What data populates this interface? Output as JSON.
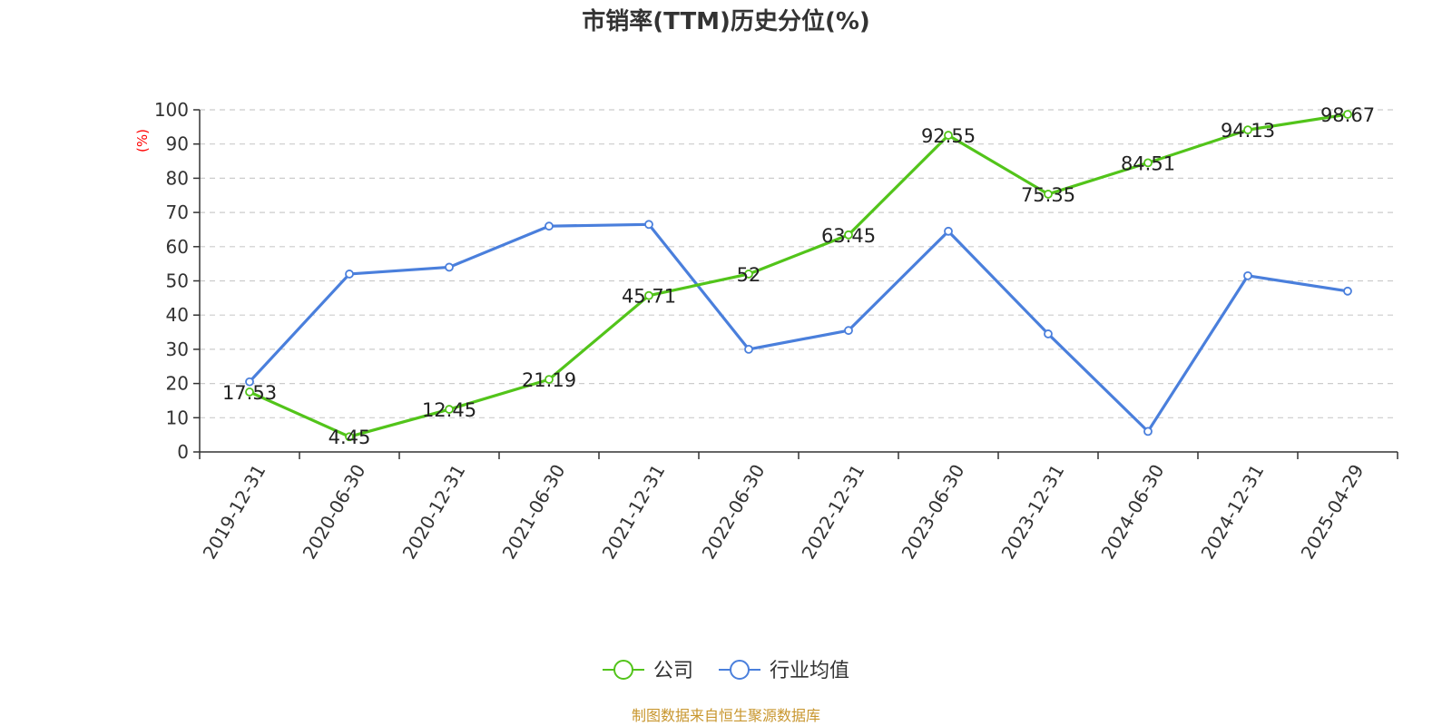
{
  "chart_data": {
    "type": "line",
    "title": "市销率(TTM)历史分位(%)",
    "ylabel": "(%)",
    "ylim": [
      0,
      100
    ],
    "yticks": [
      0,
      10,
      20,
      30,
      40,
      50,
      60,
      70,
      80,
      90,
      100
    ],
    "grid": true,
    "legend_position": "bottom",
    "categories": [
      "2019-12-31",
      "2020-06-30",
      "2020-12-31",
      "2021-06-30",
      "2021-12-31",
      "2022-06-30",
      "2022-12-31",
      "2023-06-30",
      "2023-12-31",
      "2024-06-30",
      "2024-12-31",
      "2025-04-29"
    ],
    "series": [
      {
        "name": "公司",
        "color": "#52c41a",
        "values": [
          17.53,
          4.45,
          12.45,
          21.19,
          45.71,
          52,
          63.45,
          92.55,
          75.35,
          84.51,
          94.13,
          98.67
        ],
        "data_labels": [
          "17.53",
          "4.45",
          "12.45",
          "21.19",
          "45.71",
          "52",
          "63.45",
          "92.55",
          "75.35",
          "84.51",
          "94.13",
          "98.67"
        ]
      },
      {
        "name": "行业均值",
        "color": "#4a7fdc",
        "values": [
          20.5,
          52,
          54,
          66,
          66.5,
          30,
          35.5,
          64.5,
          34.5,
          6,
          51.5,
          47
        ]
      }
    ],
    "source": "制图数据来自恒生聚源数据库"
  }
}
